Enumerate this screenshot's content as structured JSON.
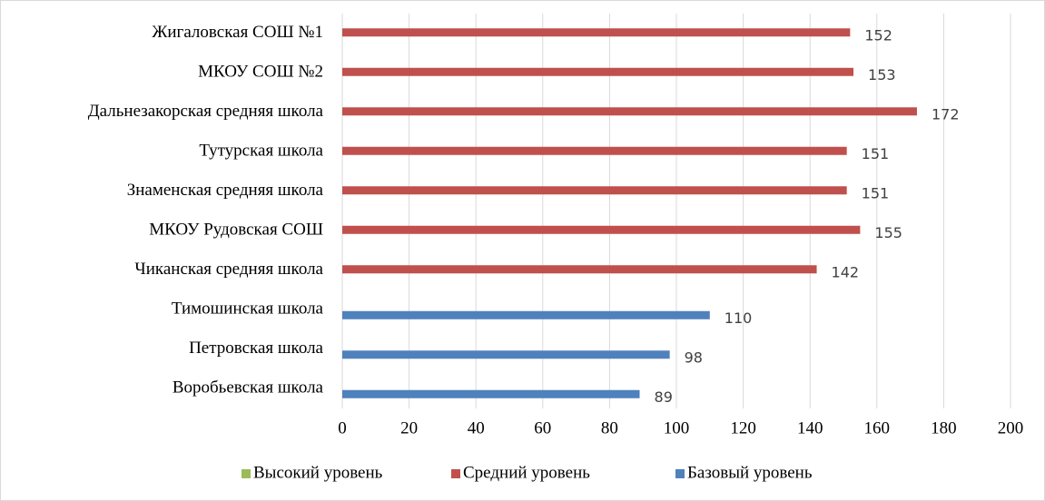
{
  "chart_data": {
    "type": "bar",
    "orientation": "horizontal",
    "categories": [
      "Жигаловская СОШ №1",
      "МКОУ СОШ №2",
      "Дальнезакорская средняя школа",
      "Тутурская школа",
      "Знаменская средняя школа",
      "МКОУ Рудовская СОШ",
      "Чиканская средняя школа",
      "Тимошинская школа",
      "Петровская школа",
      "Воробьевская школа"
    ],
    "series": [
      {
        "name": "Высокий уровень",
        "color": "#9bbb59",
        "values": [
          null,
          null,
          null,
          null,
          null,
          null,
          null,
          null,
          null,
          null
        ]
      },
      {
        "name": "Средний уровень",
        "color": "#c0504d",
        "values": [
          152,
          153,
          172,
          151,
          151,
          155,
          142,
          null,
          null,
          null
        ]
      },
      {
        "name": "Базовый уровень",
        "color": "#4f81bd",
        "values": [
          null,
          null,
          null,
          null,
          null,
          null,
          null,
          110,
          98,
          89
        ]
      }
    ],
    "xlim": [
      0,
      200
    ],
    "xticks": [
      0,
      20,
      40,
      60,
      80,
      100,
      120,
      140,
      160,
      180,
      200
    ],
    "grid": true,
    "legend": "bottom"
  }
}
